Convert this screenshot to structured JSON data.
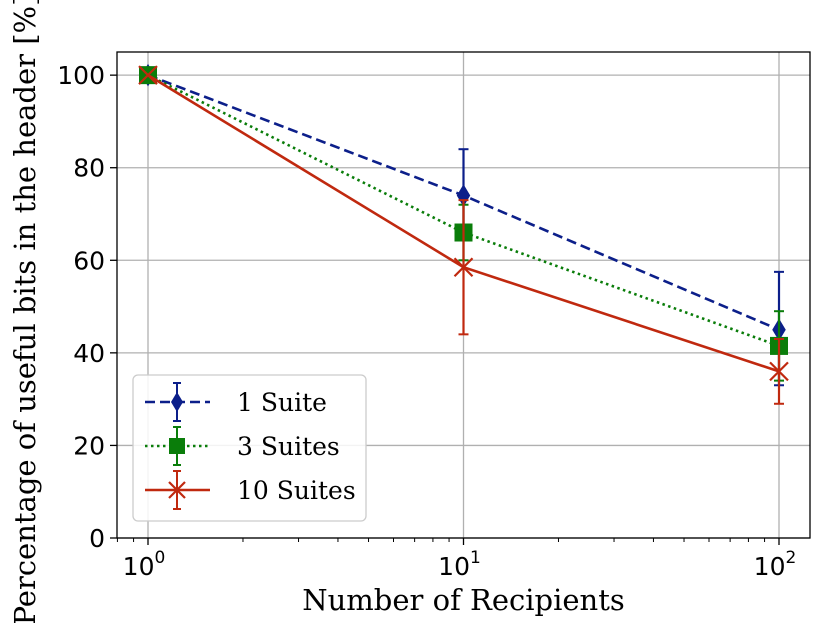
{
  "chart_data": {
    "type": "line",
    "xlabel": "Number of Recipients",
    "ylabel": "Percentage of useful bits in the header [%]",
    "xscale": "log",
    "xlim": [
      0.8,
      128
    ],
    "ylim": [
      0,
      105
    ],
    "grid": true,
    "legend_position": "bottom-left",
    "x_ticks": [
      {
        "value": 1,
        "label_base": "10",
        "label_exp": "0"
      },
      {
        "value": 10,
        "label_base": "10",
        "label_exp": "1"
      },
      {
        "value": 100,
        "label_base": "10",
        "label_exp": "2"
      }
    ],
    "y_ticks": [
      {
        "value": 0,
        "label": "0"
      },
      {
        "value": 20,
        "label": "20"
      },
      {
        "value": 40,
        "label": "40"
      },
      {
        "value": 60,
        "label": "60"
      },
      {
        "value": 80,
        "label": "80"
      },
      {
        "value": 100,
        "label": "100"
      }
    ],
    "x": [
      1,
      10,
      100
    ],
    "series": [
      {
        "name": "1 Suite",
        "values": [
          100,
          74,
          45
        ],
        "error": [
          [
            100,
            100
          ],
          [
            65,
            84
          ],
          [
            33,
            57.5
          ]
        ],
        "color": "#0c1f8a",
        "marker": "diamond",
        "linestyle": "dashed"
      },
      {
        "name": "3 Suites",
        "values": [
          100,
          66,
          41.5
        ],
        "error": [
          [
            100,
            100
          ],
          [
            60,
            72
          ],
          [
            34,
            49
          ]
        ],
        "color": "#0a7d0a",
        "marker": "square",
        "linestyle": "dotted"
      },
      {
        "name": "10 Suites",
        "values": [
          100,
          58.5,
          36
        ],
        "error": [
          [
            100,
            100
          ],
          [
            44,
            73
          ],
          [
            29,
            43
          ]
        ],
        "color": "#c0290f",
        "marker": "x",
        "linestyle": "solid"
      }
    ]
  }
}
